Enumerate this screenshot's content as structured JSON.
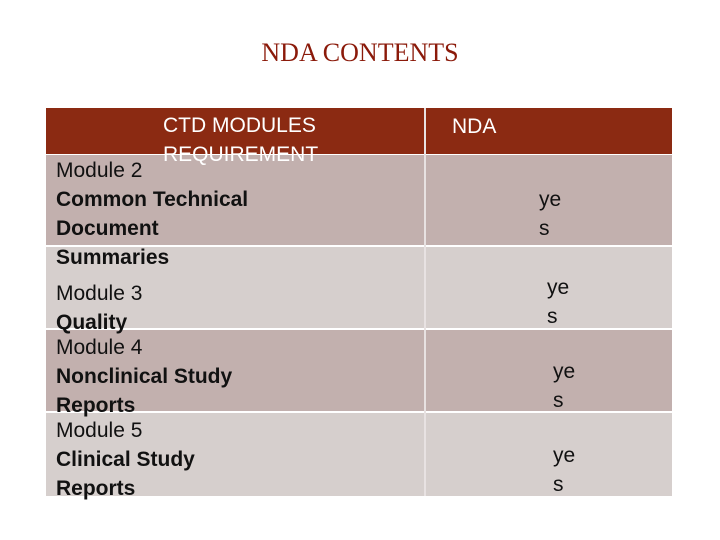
{
  "title": "NDA CONTENTS",
  "table": {
    "header": {
      "col1_line1": "CTD MODULES",
      "col1_line2": "REQUIREMENT",
      "col2": "NDA"
    },
    "rows": [
      {
        "module": "Module 2",
        "lines": [
          "Common Technical",
          "Document",
          "Summaries"
        ],
        "nda_line1": "ye",
        "nda_line2": "s"
      },
      {
        "module": "Module 3",
        "lines": [
          "Quality"
        ],
        "nda_line1": "ye",
        "nda_line2": "s"
      },
      {
        "module": "Module 4",
        "lines": [
          "Nonclinical Study",
          "Reports"
        ],
        "nda_line1": "ye",
        "nda_line2": "s"
      },
      {
        "module": "Module 5",
        "lines": [
          "Clinical Study",
          "Reports"
        ],
        "nda_line1": "ye",
        "nda_line2": "s"
      }
    ],
    "colors": {
      "header": "#8b2a12",
      "row_dark": "#c2b0ae",
      "row_light": "#d6cfcd",
      "title": "#8b1a0a"
    }
  }
}
